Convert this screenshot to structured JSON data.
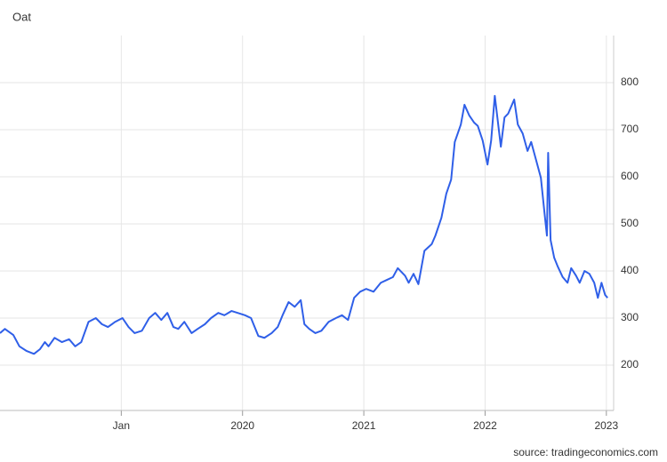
{
  "chart_data": {
    "type": "line",
    "title": "Oat",
    "source": "source: tradingeconomics.com",
    "x": [
      2018.0,
      2018.04,
      2018.11,
      2018.16,
      2018.22,
      2018.28,
      2018.33,
      2018.37,
      2018.4,
      2018.45,
      2018.51,
      2018.57,
      2018.62,
      2018.67,
      2018.73,
      2018.79,
      2018.84,
      2018.89,
      2018.95,
      2019.01,
      2019.06,
      2019.11,
      2019.17,
      2019.23,
      2019.28,
      2019.33,
      2019.38,
      2019.43,
      2019.47,
      2019.52,
      2019.58,
      2019.63,
      2019.69,
      2019.74,
      2019.8,
      2019.85,
      2019.91,
      2019.96,
      2020.02,
      2020.07,
      2020.13,
      2020.18,
      2020.24,
      2020.29,
      2020.33,
      2020.38,
      2020.43,
      2020.48,
      2020.51,
      2020.55,
      2020.6,
      2020.65,
      2020.71,
      2020.77,
      2020.82,
      2020.87,
      2020.92,
      2020.97,
      2021.02,
      2021.08,
      2021.14,
      2021.19,
      2021.24,
      2021.28,
      2021.34,
      2021.37,
      2021.41,
      2021.45,
      2021.5,
      2021.56,
      2021.59,
      2021.64,
      2021.68,
      2021.72,
      2021.75,
      2021.8,
      2021.83,
      2021.87,
      2021.91,
      2021.94,
      2021.98,
      2022.02,
      2022.05,
      2022.08,
      2022.13,
      2022.16,
      2022.19,
      2022.24,
      2022.27,
      2022.31,
      2022.35,
      2022.38,
      2022.42,
      2022.46,
      2022.49,
      2022.51,
      2022.52,
      2022.54,
      2022.57,
      2022.6,
      2022.64,
      2022.68,
      2022.71,
      2022.75,
      2022.78,
      2022.82,
      2022.86,
      2022.9,
      2022.93,
      2022.96,
      2022.99,
      2023.01
    ],
    "series": [
      {
        "name": "Oat",
        "color": "#2f5fe8",
        "values": [
          268,
          277,
          264,
          240,
          230,
          224,
          234,
          249,
          240,
          258,
          249,
          255,
          240,
          249,
          292,
          300,
          287,
          281,
          292,
          300,
          281,
          268,
          273,
          300,
          311,
          296,
          311,
          281,
          277,
          292,
          268,
          277,
          287,
          300,
          311,
          306,
          315,
          311,
          306,
          300,
          262,
          258,
          268,
          281,
          306,
          334,
          324,
          338,
          287,
          277,
          268,
          273,
          292,
          300,
          306,
          296,
          343,
          356,
          362,
          356,
          375,
          381,
          387,
          406,
          390,
          375,
          394,
          372,
          443,
          457,
          475,
          513,
          564,
          594,
          674,
          711,
          753,
          730,
          715,
          708,
          677,
          626,
          677,
          772,
          664,
          726,
          734,
          764,
          711,
          692,
          655,
          674,
          636,
          598,
          523,
          475,
          651,
          466,
          428,
          409,
          387,
          375,
          406,
          390,
          375,
          400,
          394,
          375,
          343,
          375,
          349,
          343
        ]
      }
    ],
    "xlim": [
      2018,
      2023.06
    ],
    "xticks": [
      {
        "value": 2019,
        "label": "Jan"
      },
      2020,
      2021,
      2022,
      2023
    ],
    "ylim": [
      100,
      900
    ],
    "yticks": [
      200,
      300,
      400,
      500,
      600,
      700,
      800
    ],
    "grid": true
  }
}
